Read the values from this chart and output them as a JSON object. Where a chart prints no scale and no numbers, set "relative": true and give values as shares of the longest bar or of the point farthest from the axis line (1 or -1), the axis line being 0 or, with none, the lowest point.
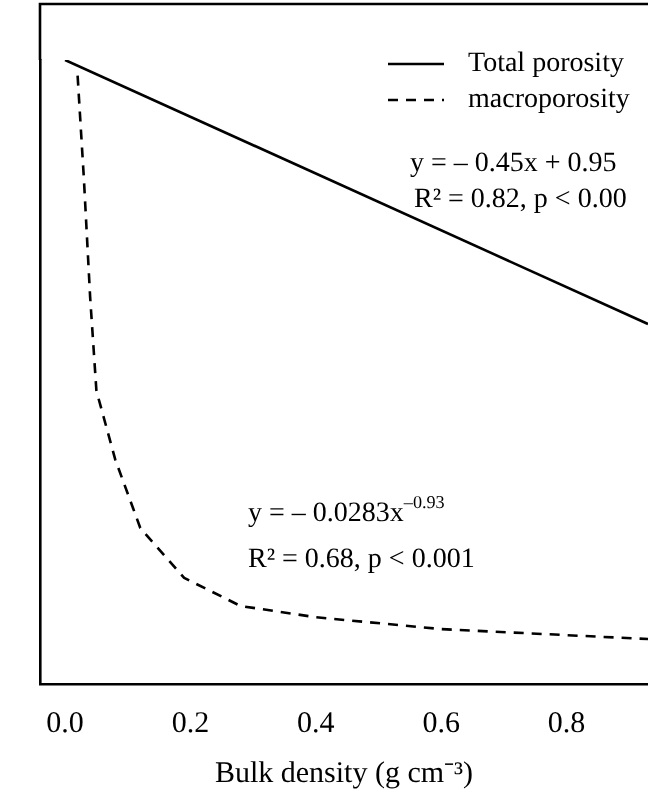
{
  "chart_data": {
    "type": "line",
    "xlabel": "Bulk density (g cm⁻³)",
    "relative": true,
    "xlim": [
      -0.04,
      0.93
    ],
    "xticks": [
      {
        "value": 0,
        "label": "0.0"
      },
      {
        "value": 0.2,
        "label": "0.2"
      },
      {
        "value": 0.4,
        "label": "0.4"
      },
      {
        "value": 0.6,
        "label": "0.6"
      },
      {
        "value": 0.8,
        "label": "0.8"
      }
    ],
    "series": [
      {
        "name": "Total porosity",
        "color": "#000000",
        "line_style": "solid",
        "x": [
          0,
          0.93
        ],
        "values": [
          1,
          0.577
        ]
      },
      {
        "name": "macroporosity",
        "color": "#000000",
        "line_style": "dashed",
        "x": [
          0.02,
          0.03,
          0.04,
          0.05,
          0.08,
          0.12,
          0.19,
          0.28,
          0.4,
          0.6,
          0.93
        ],
        "values": [
          0.975,
          0.81,
          0.62,
          0.47,
          0.36,
          0.25,
          0.17,
          0.125,
          0.107,
          0.088,
          0.072
        ]
      }
    ],
    "annotations": [
      "y = – 0.45x + 0.95",
      "R² = 0.82, p < 0.00",
      "y = – 0.0283x$^{–0.93}$",
      "R² = 0.68, p < 0.001"
    ],
    "legend": "top right",
    "grid": false,
    "marker": "none"
  }
}
